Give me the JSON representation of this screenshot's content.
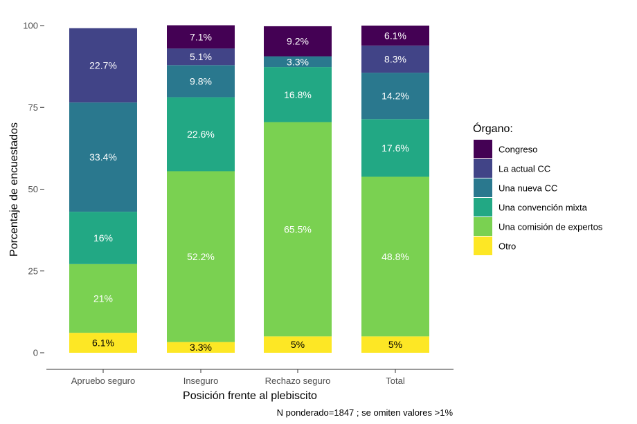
{
  "chart_data": {
    "type": "bar",
    "stacked": true,
    "categories": [
      "Apruebo seguro",
      "Inseguro",
      "Rechazo seguro",
      "Total"
    ],
    "xlabel": "Posición frente al plebiscito",
    "ylabel": "Porcentaje de encuestados",
    "ylim": [
      0,
      100
    ],
    "yticks": [
      0,
      25,
      50,
      75,
      100
    ],
    "grid": false,
    "legend": {
      "title": "Órgano:",
      "position": "right"
    },
    "caption": "N ponderado=1847  ; se omiten valores >1%",
    "series": [
      {
        "name": "Otro",
        "color": "#fde725",
        "label_color": "#000000",
        "values": [
          6.1,
          3.3,
          5.0,
          5.0
        ],
        "labels": [
          "6.1%",
          "3.3%",
          "5%",
          "5%"
        ]
      },
      {
        "name": "Una comisión de expertos",
        "color": "#7ad151",
        "label_color": "#ffffff",
        "values": [
          21.0,
          52.2,
          65.5,
          48.8
        ],
        "labels": [
          "21%",
          "52.2%",
          "65.5%",
          "48.8%"
        ]
      },
      {
        "name": "Una convención mixta",
        "color": "#22a884",
        "label_color": "#ffffff",
        "values": [
          16.0,
          22.6,
          16.8,
          17.6
        ],
        "labels": [
          "16%",
          "22.6%",
          "16.8%",
          "17.6%"
        ]
      },
      {
        "name": "Una nueva CC",
        "color": "#2a788e",
        "label_color": "#ffffff",
        "values": [
          33.4,
          9.8,
          3.3,
          14.2
        ],
        "labels": [
          "33.4%",
          "9.8%",
          "3.3%",
          "14.2%"
        ]
      },
      {
        "name": "La actual CC",
        "color": "#414487",
        "label_color": "#ffffff",
        "values": [
          22.7,
          5.1,
          0,
          8.3
        ],
        "labels": [
          "22.7%",
          "5.1%",
          "",
          "8.3%"
        ]
      },
      {
        "name": "Congreso",
        "color": "#440154",
        "label_color": "#ffffff",
        "values": [
          0,
          7.1,
          9.2,
          6.1
        ],
        "labels": [
          "",
          "7.1%",
          "9.2%",
          "6.1%"
        ]
      }
    ],
    "legend_order": [
      "Congreso",
      "La actual CC",
      "Una nueva CC",
      "Una convención mixta",
      "Una comisión de expertos",
      "Otro"
    ]
  }
}
